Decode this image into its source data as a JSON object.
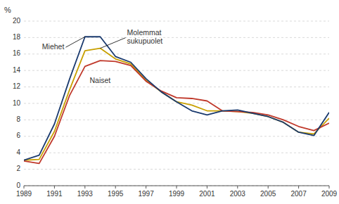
{
  "chart_data": {
    "type": "line",
    "ylabel": "%",
    "x": [
      1989,
      1990,
      1991,
      1992,
      1993,
      1994,
      1995,
      1996,
      1997,
      1998,
      1999,
      2000,
      2001,
      2002,
      2003,
      2004,
      2005,
      2006,
      2007,
      2008,
      2009
    ],
    "series": [
      {
        "name": "Molemmat\nsukupuolet",
        "color": "#c8a000",
        "line_style": "solid",
        "values": [
          3.1,
          3.2,
          6.6,
          11.7,
          16.4,
          16.7,
          15.4,
          14.8,
          12.8,
          11.4,
          10.2,
          9.8,
          9.1,
          9.1,
          9.0,
          8.8,
          8.4,
          7.7,
          6.5,
          6.3,
          8.2
        ]
      },
      {
        "name": "Naiset",
        "color": "#c0392b",
        "line_style": "solid",
        "values": [
          3.0,
          2.7,
          6.0,
          11.0,
          14.5,
          15.2,
          15.1,
          14.6,
          12.7,
          11.5,
          10.7,
          10.6,
          10.3,
          9.1,
          9.0,
          8.9,
          8.6,
          8.0,
          7.2,
          6.7,
          7.6
        ]
      },
      {
        "name": "Miehet",
        "color": "#1a3a6e",
        "line_style": "solid",
        "values": [
          3.1,
          3.7,
          7.5,
          13.0,
          18.1,
          18.1,
          15.7,
          15.0,
          13.0,
          11.4,
          10.2,
          9.1,
          8.6,
          9.1,
          9.2,
          8.8,
          8.4,
          7.7,
          6.5,
          6.1,
          8.9
        ]
      }
    ],
    "xlim": [
      1989,
      2009
    ],
    "xticks": [
      1989,
      1991,
      1993,
      1995,
      1997,
      1999,
      2001,
      2003,
      2005,
      2007,
      2009
    ],
    "ylim": [
      0,
      20
    ],
    "yticks": [
      0,
      2,
      4,
      6,
      8,
      10,
      12,
      14,
      16,
      18,
      20
    ],
    "grid": true
  }
}
